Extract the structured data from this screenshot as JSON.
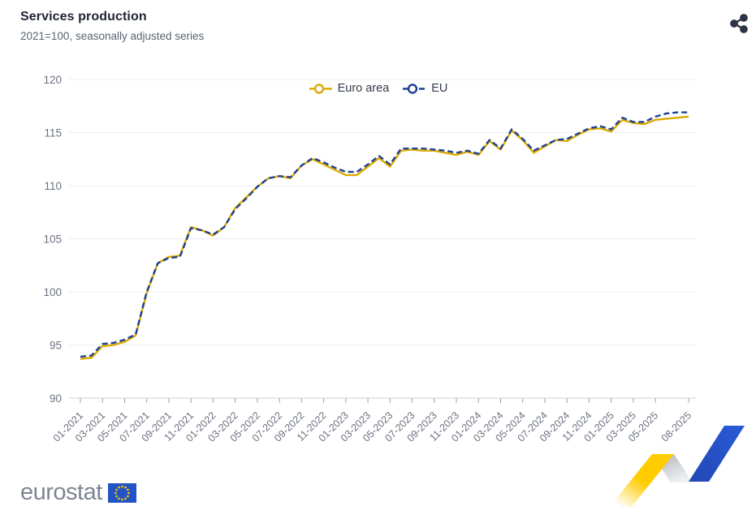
{
  "header": {
    "title": "Services production",
    "subtitle": "2021=100, seasonally adjusted series"
  },
  "toolbar": {
    "share_label": "Share"
  },
  "icons": {
    "share": "share-alt-icon",
    "eu_flag": "eu-flag-with-stars",
    "trend_mark": "eurostat-zigzag-trend-mark"
  },
  "colors": {
    "euro_area_line": "#dbaa00",
    "eu_line": "#1e4094",
    "title_text": "#1f2533",
    "subtitle_text": "#5a6270",
    "axis_label": "#6b7280",
    "gridline": "#e9edf2",
    "axis_line": "#c9ced6",
    "share_icon": "#2b3442",
    "logo_gray": "#7e8591",
    "flag_blue": "#2353c4",
    "star_yellow": "#ffcc00",
    "deco_yellow": "#ffcc00",
    "deco_gray": "#b9bdc4",
    "deco_blue": "#2554cf"
  },
  "footer": {
    "logo_text": "eurostat"
  },
  "chart_data": {
    "type": "line",
    "title": "Services production",
    "subtitle": "2021=100, seasonally adjusted series",
    "grid": true,
    "legend_position": "top-center",
    "ylim": [
      90,
      120
    ],
    "y_ticks": [
      90,
      95,
      100,
      105,
      110,
      115,
      120
    ],
    "x_categories": [
      "01-2021",
      "02-2021",
      "03-2021",
      "04-2021",
      "05-2021",
      "06-2021",
      "07-2021",
      "08-2021",
      "09-2021",
      "10-2021",
      "11-2021",
      "12-2021",
      "01-2022",
      "02-2022",
      "03-2022",
      "04-2022",
      "05-2022",
      "06-2022",
      "07-2022",
      "08-2022",
      "09-2022",
      "10-2022",
      "11-2022",
      "12-2022",
      "01-2023",
      "02-2023",
      "03-2023",
      "04-2023",
      "05-2023",
      "06-2023",
      "07-2023",
      "08-2023",
      "09-2023",
      "10-2023",
      "11-2023",
      "12-2023",
      "01-2024",
      "02-2024",
      "03-2024",
      "04-2024",
      "05-2024",
      "06-2024",
      "07-2024",
      "08-2024",
      "09-2024",
      "10-2024",
      "11-2024",
      "12-2024",
      "01-2025",
      "02-2025",
      "03-2025",
      "04-2025",
      "05-2025",
      "06-2025",
      "07-2025",
      "08-2025"
    ],
    "x_tick_labels": [
      "01-2021",
      "03-2021",
      "05-2021",
      "07-2021",
      "09-2021",
      "11-2021",
      "01-2022",
      "03-2022",
      "05-2022",
      "07-2022",
      "09-2022",
      "11-2022",
      "01-2023",
      "03-2023",
      "05-2023",
      "07-2023",
      "09-2023",
      "11-2023",
      "01-2024",
      "03-2024",
      "05-2024",
      "07-2024",
      "09-2024",
      "11-2024",
      "01-2025",
      "03-2025",
      "05-2025",
      "08-2025"
    ],
    "series": [
      {
        "name": "Euro area",
        "color": "#dbaa00",
        "dash": "solid",
        "marker": "circle",
        "values": [
          93.7,
          93.8,
          94.9,
          95.0,
          95.3,
          95.9,
          99.9,
          102.7,
          103.3,
          103.4,
          106.1,
          105.8,
          105.3,
          106.1,
          107.9,
          108.9,
          109.9,
          110.7,
          110.9,
          110.7,
          111.9,
          112.5,
          112.0,
          111.5,
          111.0,
          111.0,
          111.8,
          112.6,
          111.8,
          113.3,
          113.4,
          113.3,
          113.3,
          113.1,
          112.9,
          113.2,
          112.9,
          114.2,
          113.4,
          115.2,
          114.3,
          113.1,
          113.7,
          114.3,
          114.2,
          114.8,
          115.3,
          115.4,
          115.1,
          116.2,
          115.9,
          115.8,
          116.2,
          116.3,
          116.4,
          116.5
        ]
      },
      {
        "name": "EU",
        "color": "#1e4094",
        "dash": "dashed",
        "marker": "circle",
        "values": [
          93.9,
          94.0,
          95.1,
          95.2,
          95.5,
          96.0,
          100.0,
          102.7,
          103.2,
          103.3,
          106.0,
          105.8,
          105.4,
          106.1,
          107.8,
          108.8,
          109.9,
          110.7,
          110.9,
          110.8,
          111.9,
          112.6,
          112.2,
          111.7,
          111.3,
          111.3,
          112.0,
          112.8,
          112.0,
          113.5,
          113.5,
          113.5,
          113.4,
          113.3,
          113.1,
          113.3,
          113.0,
          114.3,
          113.5,
          115.3,
          114.4,
          113.3,
          113.8,
          114.3,
          114.4,
          114.9,
          115.4,
          115.6,
          115.3,
          116.4,
          116.0,
          116.0,
          116.5,
          116.8,
          116.9,
          116.9
        ]
      }
    ]
  }
}
